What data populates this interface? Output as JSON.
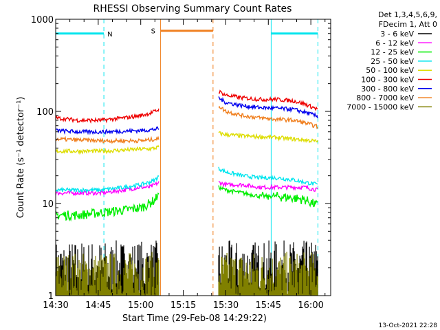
{
  "chart_data": {
    "type": "line",
    "title": "RHESSI Observing Summary Count Rates",
    "xlabel": "Start Time (29-Feb-08 14:29:22)",
    "ylabel": "Count Rate (s⁻¹ detector⁻¹)",
    "ylim": [
      1,
      1000
    ],
    "yscale": "log",
    "xlim_minutes": [
      0,
      97
    ],
    "x_ticks": [
      {
        "label": "14:30",
        "min": 0
      },
      {
        "label": "14:45",
        "min": 15
      },
      {
        "label": "15:00",
        "min": 30
      },
      {
        "label": "15:15",
        "min": 45
      },
      {
        "label": "15:30",
        "min": 60
      },
      {
        "label": "15:45",
        "min": 75
      },
      {
        "label": "16:00",
        "min": 90
      }
    ],
    "y_ticks": [
      {
        "label": "1",
        "v": 1
      },
      {
        "label": "10",
        "v": 10
      },
      {
        "label": "100",
        "v": 100
      },
      {
        "label": "1000",
        "v": 1000
      }
    ],
    "legend_header": [
      "Det 1,3,4,5,6,9,",
      "FDecim 1, Att 0"
    ],
    "footer_date": "13-Oct-2021 22:28",
    "data_gap": [
      36.7,
      57
    ],
    "markers": [
      {
        "label": "N",
        "start": 0,
        "end": 17,
        "color": "#00e5ee",
        "level": 700
      },
      {
        "label": "S",
        "start": 37,
        "end": 55.5,
        "color": "#f08020",
        "level": 750
      },
      {
        "label": "",
        "start": 76,
        "end": 92.5,
        "color": "#00e5ee",
        "level": 700
      }
    ],
    "vertical_lines": [
      {
        "t": 0,
        "color": "#00e5ee",
        "dashed": false
      },
      {
        "t": 17,
        "color": "#00e5ee",
        "dashed": true
      },
      {
        "t": 37,
        "color": "#f08020",
        "dashed": false
      },
      {
        "t": 55.5,
        "color": "#f08020",
        "dashed": true
      },
      {
        "t": 76,
        "color": "#00e5ee",
        "dashed": false
      },
      {
        "t": 92.5,
        "color": "#00e5ee",
        "dashed": true
      }
    ],
    "series": [
      {
        "name": "3 - 6 keV",
        "color": "#000000",
        "segments": [
          {
            "x": [
              0,
              36.5
            ],
            "band": [
              1.0,
              4.0
            ]
          },
          {
            "x": [
              57.5,
              92.5
            ],
            "band": [
              1.0,
              4.0
            ]
          }
        ]
      },
      {
        "name": "6 - 12 keV",
        "color": "#ff00ff",
        "segments": [
          {
            "x": [
              0,
              8,
              16,
              24,
              30,
              33,
              35,
              36.5
            ],
            "values": [
              13,
              13,
              13,
              14,
              15,
              15,
              16,
              17
            ]
          },
          {
            "x": [
              57.5,
              60,
              66,
              72,
              78,
              84,
              88,
              92.5
            ],
            "values": [
              17,
              16,
              16,
              15,
              15,
              15,
              15,
              14
            ]
          }
        ]
      },
      {
        "name": "12 - 25 keV",
        "color": "#00ee00",
        "segments": [
          {
            "x": [
              0,
              8,
              16,
              24,
              30,
              33,
              35,
              36.5
            ],
            "values": [
              7.5,
              7.5,
              8,
              8.5,
              9,
              10,
              11,
              13
            ]
          },
          {
            "x": [
              57.5,
              60,
              66,
              72,
              78,
              84,
              88,
              92.5
            ],
            "values": [
              15,
              14,
              13,
              12,
              12,
              11.5,
              11,
              9.5
            ]
          }
        ]
      },
      {
        "name": "25 - 50 keV",
        "color": "#00e5ee",
        "segments": [
          {
            "x": [
              0,
              8,
              16,
              24,
              30,
              33,
              35,
              36.5
            ],
            "values": [
              14,
              14,
              14,
              15,
              16,
              17,
              18,
              20
            ]
          },
          {
            "x": [
              57.5,
              60,
              66,
              72,
              78,
              84,
              88,
              92.5
            ],
            "values": [
              24,
              22,
              20,
              19,
              19,
              18,
              17,
              16
            ]
          }
        ]
      },
      {
        "name": "50 - 100 keV",
        "color": "#dddd00",
        "segments": [
          {
            "x": [
              0,
              8,
              16,
              24,
              30,
              33,
              35,
              36.5
            ],
            "values": [
              37,
              37,
              37,
              38,
              39,
              39,
              40,
              41
            ]
          },
          {
            "x": [
              57.5,
              60,
              66,
              72,
              78,
              84,
              88,
              92.5
            ],
            "values": [
              58,
              56,
              54,
              53,
              52,
              50,
              49,
              47
            ]
          }
        ]
      },
      {
        "name": "100 - 300 keV",
        "color": "#ee0000",
        "segments": [
          {
            "x": [
              0,
              8,
              16,
              24,
              30,
              33,
              35,
              36.5
            ],
            "values": [
              85,
              80,
              80,
              85,
              90,
              95,
              100,
              105
            ]
          },
          {
            "x": [
              57.5,
              60,
              66,
              72,
              78,
              84,
              88,
              92.5
            ],
            "values": [
              165,
              150,
              140,
              135,
              135,
              130,
              120,
              105
            ]
          }
        ]
      },
      {
        "name": "300 - 800 keV",
        "color": "#0000ee",
        "segments": [
          {
            "x": [
              0,
              8,
              16,
              24,
              30,
              33,
              35,
              36.5
            ],
            "values": [
              62,
              60,
              60,
              61,
              62,
              63,
              64,
              65
            ]
          },
          {
            "x": [
              57.5,
              60,
              66,
              72,
              78,
              84,
              88,
              92.5
            ],
            "values": [
              140,
              125,
              115,
              110,
              108,
              105,
              98,
              88
            ]
          }
        ]
      },
      {
        "name": "800 - 7000 keV",
        "color": "#f08020",
        "segments": [
          {
            "x": [
              0,
              8,
              16,
              24,
              30,
              33,
              35,
              36.5
            ],
            "values": [
              50,
              49,
              48,
              48,
              48,
              49,
              50,
              50
            ]
          },
          {
            "x": [
              57.5,
              60,
              66,
              72,
              78,
              84,
              88,
              92.5
            ],
            "values": [
              115,
              100,
              90,
              85,
              82,
              80,
              75,
              68
            ]
          }
        ]
      },
      {
        "name": "7000 - 15000 keV",
        "color": "#808000",
        "segments": [
          {
            "x": [
              0,
              36.5
            ],
            "band": [
              1.0,
              3.0
            ]
          },
          {
            "x": [
              57.5,
              92.5
            ],
            "band": [
              1.0,
              3.0
            ]
          }
        ]
      }
    ]
  }
}
